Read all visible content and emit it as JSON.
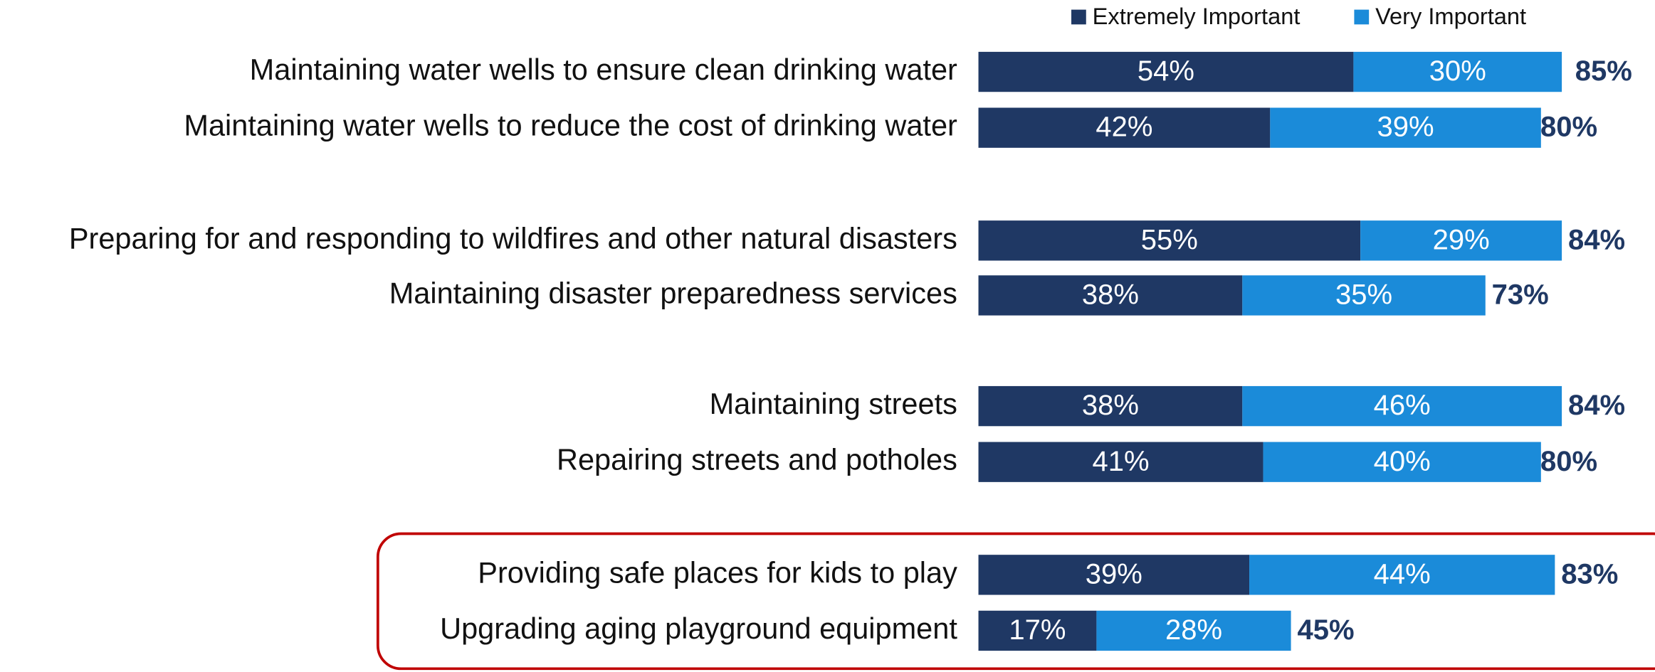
{
  "chart_data": {
    "type": "stacked-bar-horizontal",
    "categories": [
      "Maintaining water wells to ensure clean drinking water",
      "Maintaining water wells to reduce the cost of drinking water",
      "Preparing for and responding to wildfires and other natural disasters",
      "Maintaining disaster preparedness services",
      "Maintaining streets",
      "Repairing streets and potholes",
      "Providing safe places for kids to play",
      "Upgrading aging playground equipment"
    ],
    "series": [
      {
        "name": "Extremely Important",
        "color": "#1f3864",
        "values": [
          54,
          42,
          55,
          38,
          38,
          41,
          39,
          17
        ],
        "value_labels": [
          "54%",
          "42%",
          "55%",
          "38%",
          "38%",
          "41%",
          "39%",
          "17%"
        ]
      },
      {
        "name": "Very Important",
        "color": "#1b8bd9",
        "values": [
          30,
          39,
          29,
          35,
          46,
          40,
          44,
          28
        ],
        "value_labels": [
          "30%",
          "39%",
          "29%",
          "35%",
          "46%",
          "40%",
          "44%",
          "28%"
        ]
      }
    ],
    "totals": [
      85,
      80,
      84,
      73,
      84,
      80,
      83,
      45
    ],
    "total_labels": [
      "85%",
      "80%",
      "84%",
      "73%",
      "84%",
      "80%",
      "83%",
      "45%"
    ],
    "legend": "top"
  }
}
